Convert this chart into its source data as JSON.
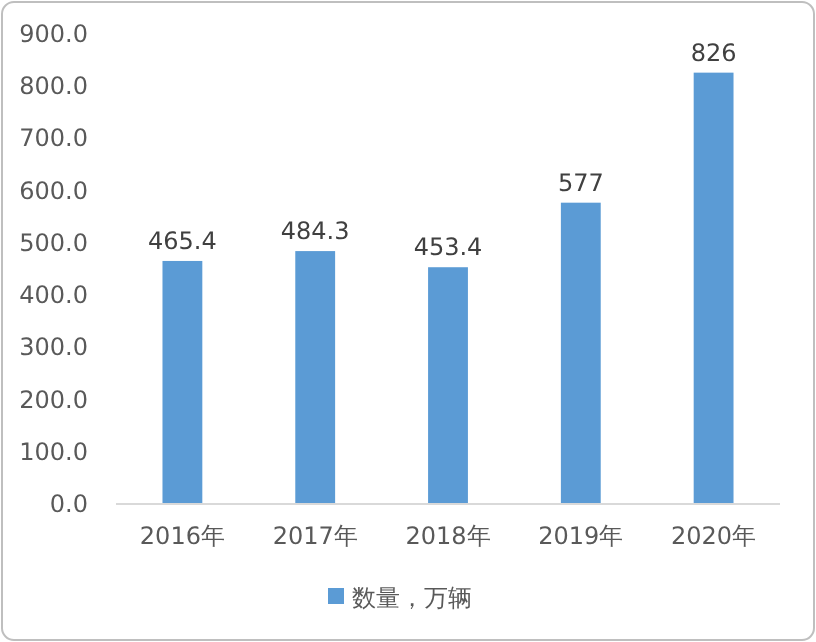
{
  "chart_data": {
    "type": "bar",
    "categories": [
      "2016年",
      "2017年",
      "2018年",
      "2019年",
      "2020年"
    ],
    "series": [
      {
        "name": "数量，万辆",
        "color": "#5b9bd5",
        "values": [
          465.4,
          484.3,
          453.4,
          577,
          826
        ]
      }
    ],
    "ylim": [
      0,
      900
    ],
    "yticks": [
      {
        "value": 0,
        "label": "0.0"
      },
      {
        "value": 100,
        "label": "100.0"
      },
      {
        "value": 200,
        "label": "200.0"
      },
      {
        "value": 300,
        "label": "300.0"
      },
      {
        "value": 400,
        "label": "400.0"
      },
      {
        "value": 500,
        "label": "500.0"
      },
      {
        "value": 600,
        "label": "600.0"
      },
      {
        "value": 700,
        "label": "700.0"
      },
      {
        "value": 800,
        "label": "800.0"
      },
      {
        "value": 900,
        "label": "900.0"
      }
    ],
    "data_labels": true,
    "legend": "bottom",
    "grid": false
  }
}
